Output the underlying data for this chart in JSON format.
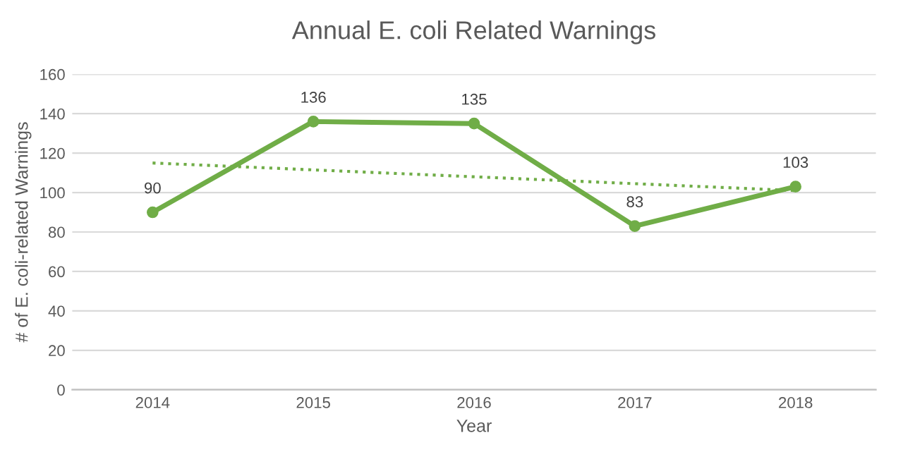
{
  "chart_data": {
    "type": "line",
    "title": "Annual E. coli Related Warnings",
    "xlabel": "Year",
    "ylabel": "# of E. coli-related Warnings",
    "categories": [
      "2014",
      "2015",
      "2016",
      "2017",
      "2018"
    ],
    "series": [
      {
        "color": "#70ad47",
        "values": [
          90,
          136,
          135,
          83,
          103
        ],
        "value_labels": [
          "90",
          "136",
          "135",
          "83",
          "103"
        ],
        "marker": "circle",
        "line_style": "solid"
      },
      {
        "type": "line",
        "color": "#70ad47",
        "values": [
          115,
          111.5,
          108,
          104.5,
          101
        ],
        "marker": "none",
        "line_style": "dotted"
      }
    ],
    "ylim": [
      0,
      160
    ],
    "yticks": [
      0,
      20,
      40,
      60,
      80,
      100,
      120,
      140,
      160
    ],
    "grid": "y",
    "legend": false
  }
}
